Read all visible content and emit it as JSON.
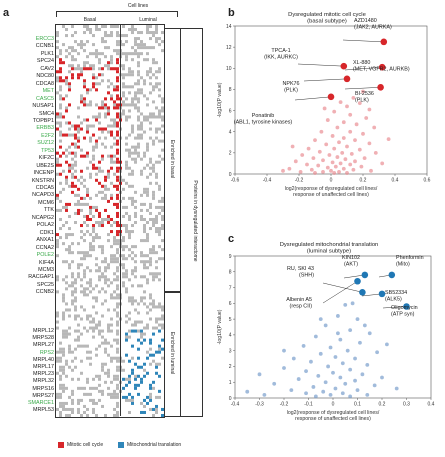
{
  "panel_a": {
    "letter": "a",
    "cell_lines_label": "Cell lines",
    "basal_label": "Basal",
    "luminal_label": "Luminal",
    "proteins_label": "Proteins in dysregulated interactome",
    "enriched_basal_label": "Enriched in basal",
    "enriched_luminal_label": "Enriched in luminal",
    "legend": [
      {
        "label": "Mitotic cell cycle",
        "color": "#d7262a"
      },
      {
        "label": "Mitochondrial translation",
        "color": "#2f86b9"
      }
    ],
    "genes_basal": [
      {
        "name": "ERCC3",
        "color": "#3aaa4a"
      },
      {
        "name": "CCNB1",
        "color": "#222222"
      },
      {
        "name": "PLK1",
        "color": "#222222"
      },
      {
        "name": "SPC24",
        "color": "#222222"
      },
      {
        "name": "CAV2",
        "color": "#222222"
      },
      {
        "name": "NDC80",
        "color": "#222222"
      },
      {
        "name": "CDCA8",
        "color": "#222222"
      },
      {
        "name": "MET",
        "color": "#3aaa4a"
      },
      {
        "name": "CASC5",
        "color": "#3aaa4a"
      },
      {
        "name": "NUSAP1",
        "color": "#222222"
      },
      {
        "name": "SMC4",
        "color": "#222222"
      },
      {
        "name": "TOPBP1",
        "color": "#222222"
      },
      {
        "name": "ERBB3",
        "color": "#3aaa4a"
      },
      {
        "name": "E2F2",
        "color": "#3aaa4a"
      },
      {
        "name": "SUZ12",
        "color": "#3aaa4a"
      },
      {
        "name": "TP53",
        "color": "#3aaa4a"
      },
      {
        "name": "KIF2C",
        "color": "#222222"
      },
      {
        "name": "UBE2S",
        "color": "#222222"
      },
      {
        "name": "INCENP",
        "color": "#222222"
      },
      {
        "name": "KNSTRN",
        "color": "#222222"
      },
      {
        "name": "CDCA5",
        "color": "#222222"
      },
      {
        "name": "NCAPD3",
        "color": "#222222"
      },
      {
        "name": "MCM6",
        "color": "#222222"
      },
      {
        "name": "TTK",
        "color": "#222222"
      },
      {
        "name": "NCAPG2",
        "color": "#222222"
      },
      {
        "name": "POLA2",
        "color": "#222222"
      },
      {
        "name": "CDK1",
        "color": "#222222"
      },
      {
        "name": "ANXA1",
        "color": "#222222"
      },
      {
        "name": "CCNA2",
        "color": "#222222"
      },
      {
        "name": "POLE2",
        "color": "#3aaa4a"
      },
      {
        "name": "KIF4A",
        "color": "#222222"
      },
      {
        "name": "MCM3",
        "color": "#222222"
      },
      {
        "name": "RACGAP1",
        "color": "#222222"
      },
      {
        "name": "SPC25",
        "color": "#222222"
      },
      {
        "name": "CCNB2",
        "color": "#222222"
      }
    ],
    "genes_luminal": [
      {
        "name": "MRPL12",
        "color": "#222222"
      },
      {
        "name": "MRPS28",
        "color": "#222222"
      },
      {
        "name": "MRPL27",
        "color": "#222222"
      },
      {
        "name": "RPS2",
        "color": "#3aaa4a"
      },
      {
        "name": "MRPL40",
        "color": "#222222"
      },
      {
        "name": "MRPL17",
        "color": "#222222"
      },
      {
        "name": "MRPL23",
        "color": "#222222"
      },
      {
        "name": "MRPL32",
        "color": "#222222"
      },
      {
        "name": "MRPS16",
        "color": "#222222"
      },
      {
        "name": "MRPS27",
        "color": "#222222"
      },
      {
        "name": "SMARCE1",
        "color": "#3aaa4a"
      },
      {
        "name": "MRPL53",
        "color": "#222222"
      }
    ]
  },
  "panel_b": {
    "letter": "b",
    "annotations": [
      {
        "text": "AZD1480\n(JAK2, AURKA)"
      },
      {
        "text": "TPCA-1\n(IKK, AURKC)"
      },
      {
        "text": "XL-880\n(MET, VGFR2, AURKB)"
      },
      {
        "text": "NPK76\n(PLK)"
      },
      {
        "text": "BI-2536\n(PLK)"
      },
      {
        "text": "Ponatinib\n(ABL1, tyrosine kinases)"
      }
    ]
  },
  "panel_c": {
    "letter": "c",
    "annotations": [
      {
        "text": "KIN102\n(AKT)"
      },
      {
        "text": "Phenformin\n(Mito)"
      },
      {
        "text": "RU, SKI 43\n(SHH)"
      },
      {
        "text": "SB52334\n(ALK5)"
      },
      {
        "text": "Albenin A5\n(resp CII)"
      },
      {
        "text": "Oligomycin\n(ATP syn)"
      }
    ]
  },
  "chart_data": [
    {
      "type": "scatter",
      "title": "Dysregulated mitotic cell cycle (basal subtype)",
      "xlabel": "log2(response of dysregulated cell lines/ response of unaffected cell lines)",
      "ylabel": "-log10(P value)",
      "xlim": [
        -0.6,
        0.6
      ],
      "ylim": [
        0,
        14
      ],
      "xticks": [
        -0.6,
        -0.4,
        -0.2,
        0,
        0.2,
        0.4,
        0.6
      ],
      "yticks": [
        0,
        2,
        4,
        6,
        8,
        10,
        12,
        14
      ],
      "highlighted_color": "#d7262a",
      "background_color": "#e8868c",
      "highlighted": [
        {
          "x": 0.33,
          "y": 12.5
        },
        {
          "x": 0.08,
          "y": 10.2
        },
        {
          "x": 0.32,
          "y": 10.1
        },
        {
          "x": 0.1,
          "y": 9.0
        },
        {
          "x": 0.31,
          "y": 8.2
        },
        {
          "x": 0.0,
          "y": 7.3
        }
      ],
      "points": [
        {
          "x": 0.06,
          "y": 6.8
        },
        {
          "x": 0.1,
          "y": 6.4
        },
        {
          "x": 0.18,
          "y": 6.7
        },
        {
          "x": 0.02,
          "y": 5.9
        },
        {
          "x": 0.12,
          "y": 5.6
        },
        {
          "x": 0.22,
          "y": 5.3
        },
        {
          "x": -0.02,
          "y": 5.1
        },
        {
          "x": 0.08,
          "y": 4.9
        },
        {
          "x": 0.16,
          "y": 4.7
        },
        {
          "x": 0.27,
          "y": 4.4
        },
        {
          "x": 0.04,
          "y": 4.4
        },
        {
          "x": -0.06,
          "y": 4.0
        },
        {
          "x": 0.12,
          "y": 4.0
        },
        {
          "x": 0.2,
          "y": 3.8
        },
        {
          "x": 0.01,
          "y": 3.6
        },
        {
          "x": 0.08,
          "y": 3.4
        },
        {
          "x": -0.1,
          "y": 3.2
        },
        {
          "x": 0.15,
          "y": 3.2
        },
        {
          "x": 0.05,
          "y": 3.0
        },
        {
          "x": -0.03,
          "y": 2.8
        },
        {
          "x": 0.24,
          "y": 2.9
        },
        {
          "x": 0.1,
          "y": 2.6
        },
        {
          "x": -0.14,
          "y": 2.4
        },
        {
          "x": 0.02,
          "y": 2.4
        },
        {
          "x": 0.18,
          "y": 2.3
        },
        {
          "x": -0.07,
          "y": 2.1
        },
        {
          "x": 0.07,
          "y": 2.0
        },
        {
          "x": 0.13,
          "y": 1.9
        },
        {
          "x": -0.18,
          "y": 1.8
        },
        {
          "x": -0.01,
          "y": 1.8
        },
        {
          "x": 0.04,
          "y": 1.6
        },
        {
          "x": 0.21,
          "y": 1.5
        },
        {
          "x": -0.11,
          "y": 1.5
        },
        {
          "x": 0.09,
          "y": 1.4
        },
        {
          "x": -0.05,
          "y": 1.3
        },
        {
          "x": 0.15,
          "y": 1.2
        },
        {
          "x": -0.22,
          "y": 1.2
        },
        {
          "x": 0.01,
          "y": 1.1
        },
        {
          "x": 0.06,
          "y": 1.0
        },
        {
          "x": -0.15,
          "y": 0.9
        },
        {
          "x": 0.12,
          "y": 0.9
        },
        {
          "x": -0.08,
          "y": 0.8
        },
        {
          "x": 0.03,
          "y": 0.7
        },
        {
          "x": 0.19,
          "y": 0.7
        },
        {
          "x": -0.02,
          "y": 0.6
        },
        {
          "x": -0.26,
          "y": 0.5
        },
        {
          "x": 0.08,
          "y": 0.5
        },
        {
          "x": -0.12,
          "y": 0.4
        },
        {
          "x": 0.14,
          "y": 0.4
        },
        {
          "x": 0.0,
          "y": 0.3
        },
        {
          "x": -0.05,
          "y": 0.2
        },
        {
          "x": 0.05,
          "y": 0.2
        },
        {
          "x": 0.25,
          "y": 0.3
        },
        {
          "x": -0.19,
          "y": 0.2
        },
        {
          "x": 0.1,
          "y": 0.1
        },
        {
          "x": -0.1,
          "y": 0.1
        },
        {
          "x": 0.02,
          "y": 0.1
        },
        {
          "x": -0.3,
          "y": 0.3
        },
        {
          "x": 0.32,
          "y": 1.0
        },
        {
          "x": 0.28,
          "y": 2.0
        },
        {
          "x": -0.24,
          "y": 2.6
        },
        {
          "x": 0.36,
          "y": 3.3
        },
        {
          "x": -0.04,
          "y": 6.2
        },
        {
          "x": 0.14,
          "y": 7.2
        },
        {
          "x": 0.24,
          "y": 6.1
        },
        {
          "x": 0.2,
          "y": 7.8
        }
      ]
    },
    {
      "type": "scatter",
      "title": "Dysregulated mitochondrial translation (luminal subtype)",
      "xlabel": "log2(response of dysregulated cell lines/ response of unaffected cell lines)",
      "ylabel": "-log10(P value)",
      "xlim": [
        -0.4,
        0.4
      ],
      "ylim": [
        0,
        9
      ],
      "xticks": [
        -0.4,
        -0.3,
        -0.2,
        -0.1,
        0,
        0.1,
        0.2,
        0.3,
        0.4
      ],
      "yticks": [
        0,
        1,
        2,
        3,
        4,
        5,
        6,
        7,
        8,
        9
      ],
      "highlighted_color": "#1f77b4",
      "background_color": "#6f97c8",
      "highlighted": [
        {
          "x": 0.13,
          "y": 7.8
        },
        {
          "x": 0.24,
          "y": 7.8
        },
        {
          "x": 0.12,
          "y": 6.7
        },
        {
          "x": 0.2,
          "y": 6.6
        },
        {
          "x": 0.1,
          "y": 7.4
        },
        {
          "x": 0.3,
          "y": 5.8
        }
      ],
      "points": [
        {
          "x": 0.05,
          "y": 5.9
        },
        {
          "x": 0.02,
          "y": 5.2
        },
        {
          "x": 0.1,
          "y": 5.0
        },
        {
          "x": -0.03,
          "y": 4.6
        },
        {
          "x": 0.07,
          "y": 4.3
        },
        {
          "x": 0.15,
          "y": 4.1
        },
        {
          "x": -0.07,
          "y": 3.9
        },
        {
          "x": 0.03,
          "y": 3.7
        },
        {
          "x": 0.11,
          "y": 3.5
        },
        {
          "x": -0.12,
          "y": 3.3
        },
        {
          "x": -0.01,
          "y": 3.2
        },
        {
          "x": 0.06,
          "y": 3.0
        },
        {
          "x": 0.18,
          "y": 2.9
        },
        {
          "x": -0.05,
          "y": 2.8
        },
        {
          "x": 0.01,
          "y": 2.6
        },
        {
          "x": -0.16,
          "y": 2.5
        },
        {
          "x": 0.09,
          "y": 2.5
        },
        {
          "x": -0.09,
          "y": 2.3
        },
        {
          "x": 0.04,
          "y": 2.2
        },
        {
          "x": 0.14,
          "y": 2.1
        },
        {
          "x": -0.02,
          "y": 2.0
        },
        {
          "x": -0.2,
          "y": 1.9
        },
        {
          "x": 0.07,
          "y": 1.8
        },
        {
          "x": -0.11,
          "y": 1.7
        },
        {
          "x": 0.0,
          "y": 1.6
        },
        {
          "x": 0.12,
          "y": 1.5
        },
        {
          "x": -0.06,
          "y": 1.4
        },
        {
          "x": 0.03,
          "y": 1.3
        },
        {
          "x": -0.14,
          "y": 1.2
        },
        {
          "x": 0.09,
          "y": 1.1
        },
        {
          "x": -0.03,
          "y": 1.0
        },
        {
          "x": 0.05,
          "y": 0.9
        },
        {
          "x": -0.24,
          "y": 0.9
        },
        {
          "x": 0.17,
          "y": 0.8
        },
        {
          "x": -0.08,
          "y": 0.7
        },
        {
          "x": 0.01,
          "y": 0.6
        },
        {
          "x": -0.17,
          "y": 0.5
        },
        {
          "x": 0.1,
          "y": 0.5
        },
        {
          "x": -0.04,
          "y": 0.4
        },
        {
          "x": 0.04,
          "y": 0.3
        },
        {
          "x": -0.11,
          "y": 0.3
        },
        {
          "x": 0.14,
          "y": 0.2
        },
        {
          "x": -0.01,
          "y": 0.2
        },
        {
          "x": -0.28,
          "y": 0.2
        },
        {
          "x": 0.07,
          "y": 0.1
        },
        {
          "x": -0.07,
          "y": 0.1
        },
        {
          "x": 0.2,
          "y": 1.3
        },
        {
          "x": -0.3,
          "y": 1.5
        },
        {
          "x": 0.22,
          "y": 3.4
        },
        {
          "x": -0.2,
          "y": 3.0
        },
        {
          "x": 0.02,
          "y": 4.1
        },
        {
          "x": -0.05,
          "y": 5.0
        },
        {
          "x": 0.13,
          "y": 4.6
        },
        {
          "x": 0.08,
          "y": 6.0
        },
        {
          "x": 0.26,
          "y": 0.6
        },
        {
          "x": -0.35,
          "y": 0.4
        }
      ]
    }
  ]
}
